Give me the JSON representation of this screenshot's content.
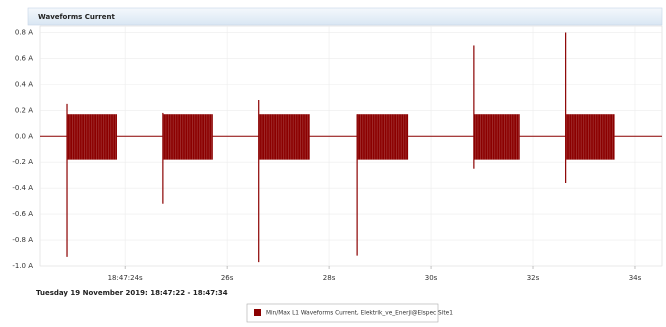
{
  "chart_data": {
    "type": "waveform",
    "title": "Waveforms Current",
    "subtitle": "Tuesday 19 November 2019: 18:47:22 - 18:47:34",
    "series": [
      {
        "name": "Min/Max L1 Waveforms Current, Elektrik_ve_Enerji@Elspec Site1",
        "color": "#8b0000",
        "bursts": [
          {
            "start": 22.86,
            "end": 23.84,
            "max": 0.17,
            "min": -0.18,
            "spike_max": 0.25,
            "spike_min": -0.93
          },
          {
            "start": 24.74,
            "end": 25.72,
            "max": 0.17,
            "min": -0.18,
            "spike_max": 0.18,
            "spike_min": -0.52
          },
          {
            "start": 26.62,
            "end": 27.62,
            "max": 0.17,
            "min": -0.18,
            "spike_max": 0.28,
            "spike_min": -0.97
          },
          {
            "start": 28.55,
            "end": 29.55,
            "max": 0.17,
            "min": -0.18,
            "spike_max": 0.17,
            "spike_min": -0.92
          },
          {
            "start": 30.84,
            "end": 31.74,
            "max": 0.17,
            "min": -0.18,
            "spike_max": 0.7,
            "spike_min": -0.25
          },
          {
            "start": 32.64,
            "end": 33.6,
            "max": 0.17,
            "min": -0.18,
            "spike_max": 0.8,
            "spike_min": -0.36
          }
        ]
      }
    ],
    "xlim": [
      22.33,
      34.53
    ],
    "xticks": [
      {
        "value": 24,
        "label": "18:47:24s"
      },
      {
        "value": 26,
        "label": "26s"
      },
      {
        "value": 28,
        "label": "28s"
      },
      {
        "value": 30,
        "label": "30s"
      },
      {
        "value": 32,
        "label": "32s"
      },
      {
        "value": 34,
        "label": "34s"
      }
    ],
    "ylim": [
      -1.0,
      0.85
    ],
    "yticks": [
      {
        "value": 0.8,
        "label": "0.8 A"
      },
      {
        "value": 0.6,
        "label": "0.6 A"
      },
      {
        "value": 0.4,
        "label": "0.4 A"
      },
      {
        "value": 0.2,
        "label": "0.2 A"
      },
      {
        "value": 0.0,
        "label": "0.0 A"
      },
      {
        "value": -0.2,
        "label": "-0.2 A"
      },
      {
        "value": -0.4,
        "label": "-0.4 A"
      },
      {
        "value": -0.6,
        "label": "-0.6 A"
      },
      {
        "value": -0.8,
        "label": "-0.8 A"
      },
      {
        "value": -1.0,
        "label": "-1.0 A"
      }
    ],
    "grid": true
  }
}
